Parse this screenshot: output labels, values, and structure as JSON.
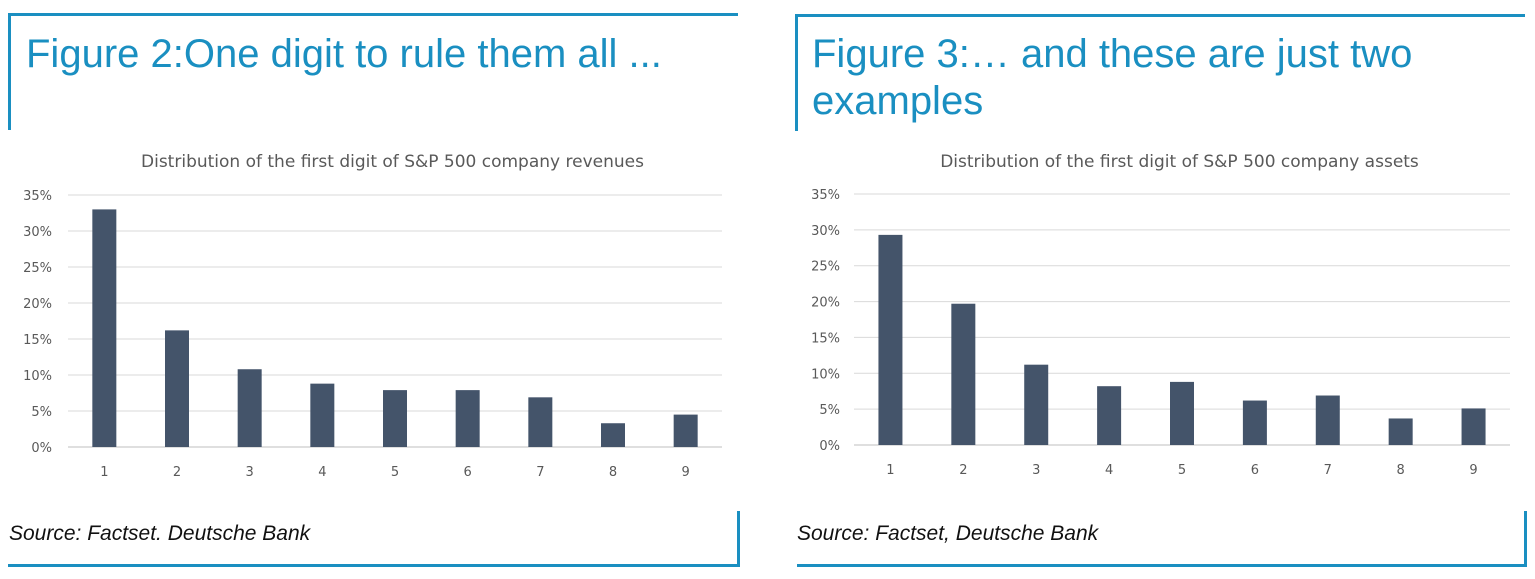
{
  "panels": [
    {
      "figure_title_lines": [
        "Figure 2:One digit to rule them all ..."
      ],
      "source": "Source: Factset. Deutsche Bank"
    },
    {
      "figure_title_lines": [
        "Figure 3:… and these are just two",
        "examples"
      ],
      "source": "Source: Factset, Deutsche Bank"
    }
  ],
  "chart_data": [
    {
      "type": "bar",
      "title": "Distribution of the first digit of S&P 500 company revenues",
      "categories": [
        "1",
        "2",
        "3",
        "4",
        "5",
        "6",
        "7",
        "8",
        "9"
      ],
      "values": [
        33.0,
        16.2,
        10.8,
        8.8,
        7.9,
        7.9,
        6.9,
        3.3,
        4.5
      ],
      "ylim": [
        0,
        35
      ],
      "yticks": [
        "0%",
        "5%",
        "10%",
        "15%",
        "20%",
        "25%",
        "30%",
        "35%"
      ],
      "grid": true,
      "bar_color": "#44546a"
    },
    {
      "type": "bar",
      "title": "Distribution of the first digit of S&P 500 company assets",
      "categories": [
        "1",
        "2",
        "3",
        "4",
        "5",
        "6",
        "7",
        "8",
        "9"
      ],
      "values": [
        29.3,
        19.7,
        11.2,
        8.2,
        8.8,
        6.2,
        6.9,
        3.7,
        5.1
      ],
      "ylim": [
        0,
        35
      ],
      "yticks": [
        "0%",
        "5%",
        "10%",
        "15%",
        "20%",
        "25%",
        "30%",
        "35%"
      ],
      "grid": true,
      "bar_color": "#44546a"
    }
  ]
}
